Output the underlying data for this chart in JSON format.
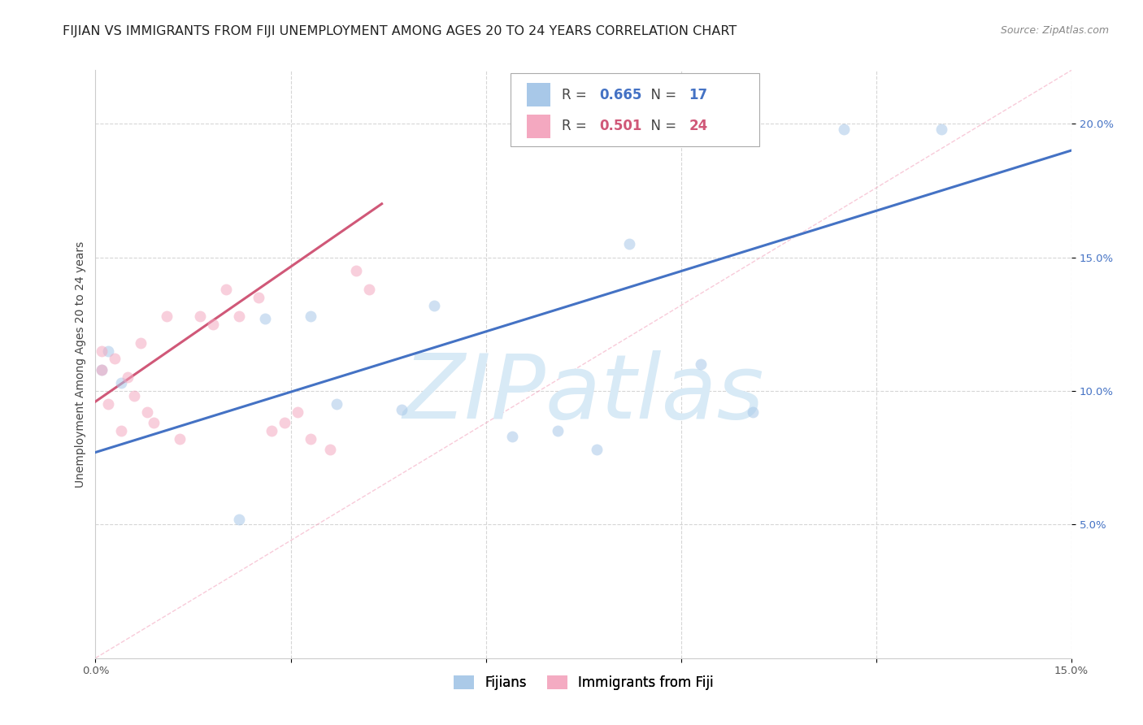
{
  "title": "FIJIAN VS IMMIGRANTS FROM FIJI UNEMPLOYMENT AMONG AGES 20 TO 24 YEARS CORRELATION CHART",
  "source": "Source: ZipAtlas.com",
  "ylabel": "Unemployment Among Ages 20 to 24 years",
  "xlim": [
    0.0,
    0.15
  ],
  "ylim": [
    0.0,
    0.22
  ],
  "yticks_right": [
    0.05,
    0.1,
    0.15,
    0.2
  ],
  "ytick_labels_right": [
    "5.0%",
    "10.0%",
    "15.0%",
    "20.0%"
  ],
  "xtick_positions": [
    0.0,
    0.03,
    0.06,
    0.09,
    0.12,
    0.15
  ],
  "xtick_labels": [
    "0.0%",
    "",
    "",
    "",
    "",
    "15.0%"
  ],
  "blue_R": "0.665",
  "blue_N": "17",
  "pink_R": "0.501",
  "pink_N": "24",
  "blue_scatter_x": [
    0.001,
    0.002,
    0.004,
    0.022,
    0.026,
    0.033,
    0.037,
    0.047,
    0.052,
    0.064,
    0.071,
    0.077,
    0.082,
    0.093,
    0.101,
    0.115,
    0.13
  ],
  "blue_scatter_y": [
    0.108,
    0.115,
    0.103,
    0.052,
    0.127,
    0.128,
    0.095,
    0.093,
    0.132,
    0.083,
    0.085,
    0.078,
    0.155,
    0.11,
    0.092,
    0.198,
    0.198
  ],
  "pink_scatter_x": [
    0.001,
    0.001,
    0.002,
    0.003,
    0.004,
    0.005,
    0.006,
    0.007,
    0.008,
    0.009,
    0.011,
    0.013,
    0.016,
    0.018,
    0.02,
    0.022,
    0.025,
    0.027,
    0.029,
    0.031,
    0.033,
    0.036,
    0.04,
    0.042
  ],
  "pink_scatter_y": [
    0.115,
    0.108,
    0.095,
    0.112,
    0.085,
    0.105,
    0.098,
    0.118,
    0.092,
    0.088,
    0.128,
    0.082,
    0.128,
    0.125,
    0.138,
    0.128,
    0.135,
    0.085,
    0.088,
    0.092,
    0.082,
    0.078,
    0.145,
    0.138
  ],
  "blue_line_x0": 0.0,
  "blue_line_y0": 0.077,
  "blue_line_x1": 0.15,
  "blue_line_y1": 0.19,
  "pink_line_x0": 0.0,
  "pink_line_y0": 0.096,
  "pink_line_x1": 0.044,
  "pink_line_y1": 0.17,
  "diag_line_x0": 0.0,
  "diag_line_y0": 0.0,
  "diag_line_x1": 0.15,
  "diag_line_y1": 0.22,
  "blue_color": "#a8c8e8",
  "pink_color": "#f4a8c0",
  "blue_line_color": "#4472c4",
  "pink_line_color": "#d05878",
  "diag_line_color": "#f4a8c0",
  "scatter_alpha": 0.55,
  "scatter_size": 100,
  "watermark_text": "ZIPatlas",
  "watermark_color": "#d8eaf6",
  "watermark_fontsize": 80,
  "title_fontsize": 11.5,
  "axis_label_fontsize": 10,
  "tick_fontsize": 9.5,
  "legend_fontsize": 12,
  "source_fontsize": 9,
  "background_color": "#ffffff",
  "grid_color": "#cccccc",
  "grid_alpha": 0.8
}
